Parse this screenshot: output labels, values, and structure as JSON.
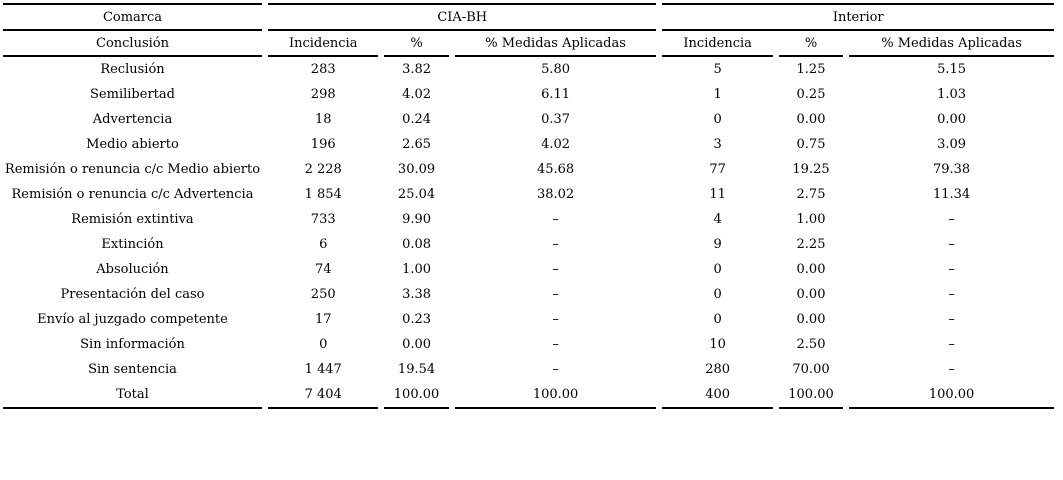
{
  "table": {
    "group_headers": [
      "Comarca",
      "CIA-BH",
      "Interior"
    ],
    "sub_headers": [
      "Conclusión",
      "Incidencia",
      "%",
      "% Medidas Aplicadas",
      "Incidencia",
      "%",
      "% Medidas Aplicadas"
    ],
    "rows": [
      {
        "label": "Reclusión",
        "values": [
          "283",
          "3.82",
          "5.80",
          "5",
          "1.25",
          "5.15"
        ]
      },
      {
        "label": "Semilibertad",
        "values": [
          "298",
          "4.02",
          "6.11",
          "1",
          "0.25",
          "1.03"
        ]
      },
      {
        "label": "Advertencia",
        "values": [
          "18",
          "0.24",
          "0.37",
          "0",
          "0.00",
          "0.00"
        ]
      },
      {
        "label": "Medio abierto",
        "values": [
          "196",
          "2.65",
          "4.02",
          "3",
          "0.75",
          "3.09"
        ]
      },
      {
        "label": "Remisión o renuncia c/c Medio abierto",
        "values": [
          "2 228",
          "30.09",
          "45.68",
          "77",
          "19.25",
          "79.38"
        ]
      },
      {
        "label": "Remisión o renuncia c/c Advertencia",
        "values": [
          "1 854",
          "25.04",
          "38.02",
          "11",
          "2.75",
          "11.34"
        ]
      },
      {
        "label": "Remisión extintiva",
        "values": [
          "733",
          "9.90",
          "–",
          "4",
          "1.00",
          "–"
        ]
      },
      {
        "label": "Extinción",
        "values": [
          "6",
          "0.08",
          "–",
          "9",
          "2.25",
          "–"
        ]
      },
      {
        "label": "Absolución",
        "values": [
          "74",
          "1.00",
          "–",
          "0",
          "0.00",
          "–"
        ]
      },
      {
        "label": "Presentación del caso",
        "values": [
          "250",
          "3.38",
          "–",
          "0",
          "0.00",
          "–"
        ]
      },
      {
        "label": "Envío al juzgado competente",
        "values": [
          "17",
          "0.23",
          "–",
          "0",
          "0.00",
          "–"
        ]
      },
      {
        "label": "Sin información",
        "values": [
          "0",
          "0.00",
          "–",
          "10",
          "2.50",
          "–"
        ]
      },
      {
        "label": "Sin sentencia",
        "values": [
          "1 447",
          "19.54",
          "–",
          "280",
          "70.00",
          "–"
        ]
      },
      {
        "label": "Total",
        "values": [
          "7 404",
          "100.00",
          "100.00",
          "400",
          "100.00",
          "100.00"
        ]
      }
    ],
    "colors": {
      "text": "#000000",
      "background": "#ffffff",
      "rule": "#000000"
    }
  }
}
